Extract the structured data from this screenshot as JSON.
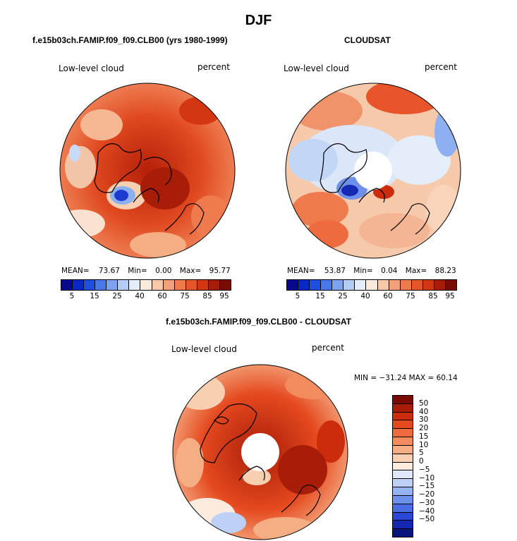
{
  "title": "DJF",
  "panels": [
    {
      "subtitle": "f.e15b03ch.FAMIP.f09_f09.CLB00 (yrs 1980-1999)",
      "left_label": "Low-level cloud",
      "right_label": "percent",
      "stats": {
        "mean_label": "MEAN=",
        "mean": "73.67",
        "min_label": "Min=",
        "min": "0.00",
        "max_label": "Max=",
        "max": "95.77"
      }
    },
    {
      "subtitle": "CLOUDSAT",
      "left_label": "Low-level cloud",
      "right_label": "percent",
      "stats": {
        "mean_label": "MEAN=",
        "mean": "53.87",
        "min_label": "Min=",
        "min": "0.04",
        "max_label": "Max=",
        "max": "88.23"
      }
    }
  ],
  "diff_panel": {
    "subtitle": "f.e15b03ch.FAMIP.f09_f09.CLB00 - CLOUDSAT",
    "left_label": "Low-level cloud",
    "right_label": "percent",
    "minmax": "MIN = −31.24 MAX =  60.14"
  },
  "colorbar_horizontal": {
    "colors": [
      "#08088c",
      "#0b27c6",
      "#1f4fe0",
      "#4a78ea",
      "#7ea3f0",
      "#b3ccf6",
      "#e4eefb",
      "#fbe9dc",
      "#f7c8a8",
      "#f2a07a",
      "#ee7a4e",
      "#e8552a",
      "#d23612",
      "#a81d08",
      "#7a0a02"
    ],
    "ticks": [
      "5",
      "15",
      "25",
      "40",
      "60",
      "75",
      "85",
      "95"
    ]
  },
  "colorbar_vertical": {
    "colors": [
      "#7a0a02",
      "#a81d08",
      "#cc2c0c",
      "#e5491f",
      "#ee6b3f",
      "#f28c5e",
      "#f5ad84",
      "#f8cfb0",
      "#fcece0",
      "#dfe8f8",
      "#bcd1f5",
      "#95b3f0",
      "#6d90ea",
      "#4a6de4",
      "#2a47d6",
      "#1428b2",
      "#07157c"
    ],
    "ticks": [
      "50",
      "40",
      "30",
      "20",
      "15",
      "10",
      "5",
      "0",
      "−5",
      "−10",
      "−15",
      "−20",
      "−30",
      "−40",
      "−50"
    ]
  }
}
